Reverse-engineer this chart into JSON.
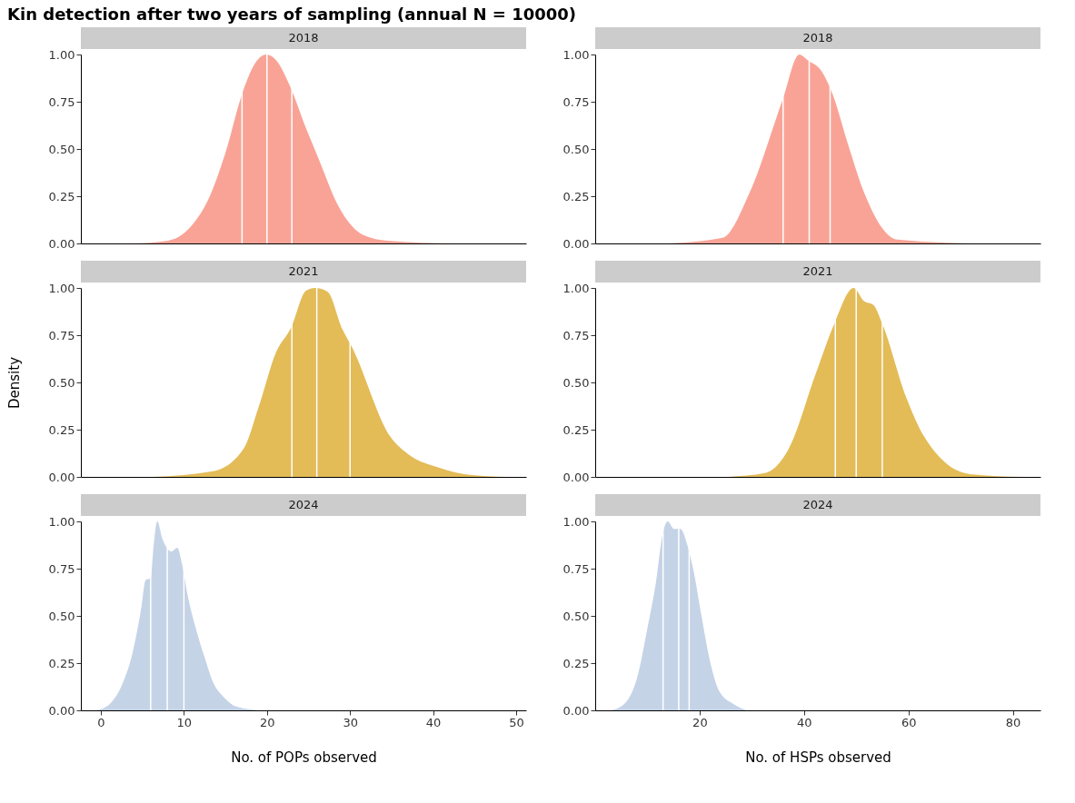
{
  "chart_data": [
    {
      "type": "area",
      "title": "Kin detection after two years of sampling (annual N = 10000)",
      "subtitle": "2018",
      "tick_labels": "y",
      "grid": false,
      "x": [
        3.8,
        8.1,
        11.4,
        12.8,
        15.0,
        17.0,
        18.6,
        19.9,
        21.1,
        22.9,
        24.7,
        26.2,
        28.7,
        31.6,
        34.5,
        42.4
      ],
      "values": [
        0,
        0.015,
        0.12,
        0.22,
        0.48,
        0.79,
        0.955,
        1.0,
        0.97,
        0.82,
        0.61,
        0.45,
        0.19,
        0.045,
        0.015,
        0
      ],
      "color": "#f9a397",
      "xlim": [
        -2.4,
        51.2
      ],
      "ylim": [
        0,
        1
      ],
      "yticks": [
        {
          "value": 0,
          "label": "0.00"
        },
        {
          "value": 0.25,
          "label": "0.25"
        },
        {
          "value": 0.5,
          "label": "0.50"
        },
        {
          "value": 0.75,
          "label": "0.75"
        },
        {
          "value": 1,
          "label": "1.00"
        }
      ],
      "ref_lines": [
        {
          "axis": "x",
          "value": 17,
          "color": "#ffffff"
        },
        {
          "axis": "x",
          "value": 20,
          "color": "#ffffff"
        },
        {
          "axis": "x",
          "value": 23,
          "color": "#ffffff"
        }
      ]
    },
    {
      "type": "area",
      "subtitle": "2018",
      "tick_labels": "y",
      "grid": false,
      "x": [
        14.0,
        24.4,
        29.6,
        35.9,
        39.1,
        40.7,
        43.4,
        45.2,
        48.6,
        51.5,
        57.9,
        71.8
      ],
      "values": [
        0,
        0.03,
        0.27,
        0.76,
        1.0,
        0.97,
        0.91,
        0.81,
        0.51,
        0.27,
        0.02,
        0
      ],
      "color": "#f9a397",
      "xlim": [
        0,
        85.3
      ],
      "ylim": [
        0,
        1
      ],
      "yticks": [
        {
          "value": 0,
          "label": "0.00"
        },
        {
          "value": 0.25,
          "label": "0.25"
        },
        {
          "value": 0.5,
          "label": "0.50"
        },
        {
          "value": 0.75,
          "label": "0.75"
        },
        {
          "value": 1,
          "label": "1.00"
        }
      ],
      "ref_lines": [
        {
          "axis": "x",
          "value": 36,
          "color": "#ffffff"
        },
        {
          "axis": "x",
          "value": 41,
          "color": "#ffffff"
        },
        {
          "axis": "x",
          "value": 45,
          "color": "#ffffff"
        }
      ]
    },
    {
      "type": "area",
      "subtitle": "2021",
      "ylabel": "Density",
      "tick_labels": "y",
      "grid": false,
      "x": [
        6.3,
        13.5,
        17.2,
        19.0,
        21.1,
        22.9,
        24.7,
        25.8,
        27.3,
        29.1,
        30.2,
        34.9,
        37.0,
        40.6,
        44.2,
        48.9
      ],
      "values": [
        0,
        0.03,
        0.15,
        0.37,
        0.66,
        0.79,
        0.985,
        1.0,
        0.98,
        0.78,
        0.69,
        0.21,
        0.12,
        0.05,
        0.012,
        0
      ],
      "color": "#e3bc58",
      "xlim": [
        -2.4,
        51.2
      ],
      "ylim": [
        0,
        1
      ],
      "yticks": [
        {
          "value": 0,
          "label": "0.00"
        },
        {
          "value": 0.25,
          "label": "0.25"
        },
        {
          "value": 0.5,
          "label": "0.50"
        },
        {
          "value": 0.75,
          "label": "0.75"
        },
        {
          "value": 1,
          "label": "1.00"
        }
      ],
      "ref_lines": [
        {
          "axis": "x",
          "value": 23,
          "color": "#ffffff"
        },
        {
          "axis": "x",
          "value": 26,
          "color": "#ffffff"
        },
        {
          "axis": "x",
          "value": 30,
          "color": "#ffffff"
        }
      ]
    },
    {
      "type": "area",
      "subtitle": "2021",
      "tick_labels": "y",
      "grid": false,
      "x": [
        25.5,
        32.5,
        37.1,
        42.3,
        45.8,
        49.5,
        51.5,
        53.3,
        55.0,
        59.6,
        63.1,
        71.8,
        82.2
      ],
      "values": [
        0,
        0.02,
        0.15,
        0.55,
        0.81,
        1.0,
        0.93,
        0.91,
        0.81,
        0.42,
        0.21,
        0.015,
        0
      ],
      "color": "#e3bc58",
      "xlim": [
        0,
        85.3
      ],
      "ylim": [
        0,
        1
      ],
      "yticks": [
        {
          "value": 0,
          "label": "0.00"
        },
        {
          "value": 0.25,
          "label": "0.25"
        },
        {
          "value": 0.5,
          "label": "0.50"
        },
        {
          "value": 0.75,
          "label": "0.75"
        },
        {
          "value": 1,
          "label": "1.00"
        }
      ],
      "ref_lines": [
        {
          "axis": "x",
          "value": 46,
          "color": "#ffffff"
        },
        {
          "axis": "x",
          "value": 50,
          "color": "#ffffff"
        },
        {
          "axis": "x",
          "value": 55,
          "color": "#ffffff"
        }
      ]
    },
    {
      "type": "area",
      "subtitle": "2024",
      "xlabel": "No. of POPs observed",
      "grid": false,
      "x": [
        -0.5,
        1.1,
        2.7,
        3.8,
        4.9,
        5.4,
        6.0,
        6.3,
        6.8,
        7.4,
        7.8,
        8.5,
        9.2,
        9.75,
        10.5,
        11.4,
        12.5,
        13.5,
        14.8,
        16.3,
        19.0
      ],
      "values": [
        0,
        0.035,
        0.15,
        0.3,
        0.55,
        0.69,
        0.7,
        0.84,
        1.0,
        0.91,
        0.87,
        0.84,
        0.86,
        0.78,
        0.6,
        0.44,
        0.28,
        0.15,
        0.07,
        0.02,
        0
      ],
      "color": "#c5d3e7",
      "xlim": [
        -2.4,
        51.2
      ],
      "xticks": [
        0,
        10,
        20,
        30,
        40,
        50
      ],
      "ylim": [
        0,
        1
      ],
      "yticks": [
        {
          "value": 0,
          "label": "0.00"
        },
        {
          "value": 0.25,
          "label": "0.25"
        },
        {
          "value": 0.5,
          "label": "0.50"
        },
        {
          "value": 0.75,
          "label": "0.75"
        },
        {
          "value": 1,
          "label": "1.00"
        }
      ],
      "ref_lines": [
        {
          "axis": "x",
          "value": 6,
          "color": "#ffffff"
        },
        {
          "axis": "x",
          "value": 8,
          "color": "#ffffff"
        },
        {
          "axis": "x",
          "value": 10,
          "color": "#ffffff"
        }
      ]
    },
    {
      "type": "area",
      "subtitle": "2024",
      "xlabel": "No. of HSPs observed",
      "grid": false,
      "x": [
        3.0,
        5.6,
        8.2,
        9.9,
        11.7,
        12.9,
        13.9,
        15.1,
        16.3,
        17.7,
        18.9,
        20.3,
        22.0,
        23.8,
        26.4,
        29.0
      ],
      "values": [
        0,
        0.035,
        0.19,
        0.42,
        0.69,
        0.93,
        1.0,
        0.96,
        0.96,
        0.87,
        0.73,
        0.51,
        0.26,
        0.1,
        0.035,
        0
      ],
      "color": "#c5d3e7",
      "xlim": [
        0,
        85.3
      ],
      "xticks": [
        20,
        40,
        60,
        80
      ],
      "ylim": [
        0,
        1
      ],
      "yticks": [
        {
          "value": 0,
          "label": "0.00"
        },
        {
          "value": 0.25,
          "label": "0.25"
        },
        {
          "value": 0.5,
          "label": "0.50"
        },
        {
          "value": 0.75,
          "label": "0.75"
        },
        {
          "value": 1,
          "label": "1.00"
        }
      ],
      "ref_lines": [
        {
          "axis": "x",
          "value": 13,
          "color": "#ffffff"
        },
        {
          "axis": "x",
          "value": 16,
          "color": "#ffffff"
        },
        {
          "axis": "x",
          "value": 18,
          "color": "#ffffff"
        }
      ]
    }
  ]
}
